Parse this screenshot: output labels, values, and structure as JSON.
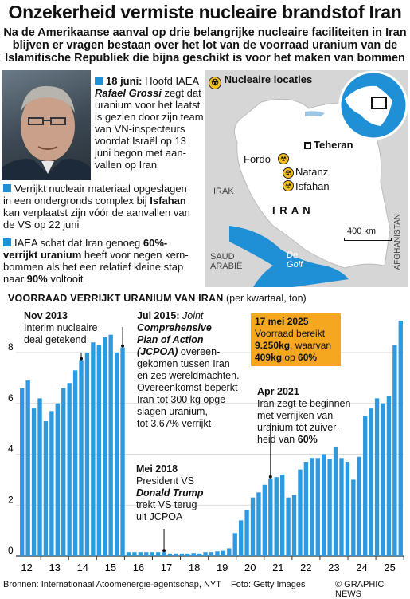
{
  "header": {
    "title": "Onzekerheid vermiste nucleaire brandstof Iran",
    "intro_1": "Na de Amerikaanse aanval op drie belangrijke nucleaire faciliteiten in Iran",
    "intro_2": "blijven er vragen bestaan over het lot van de voorraad uranium van de",
    "intro_3": "Islamitische Republiek die bijna geschikt is voor het maken van bommen"
  },
  "bullets": {
    "b1": {
      "date": "18 juni:",
      "line1_rest": "Hoofd IAEA",
      "name": "Rafael Grossi",
      "line2_rest": "zegt dat",
      "lines": [
        "uranium voor het laatst",
        "is gezien door zijn team",
        "van VN-inspecteurs",
        "voordat Israël op 13",
        "juni begon met aan-",
        "vallen op Iran"
      ]
    },
    "b2": {
      "line1": "Verrijkt nucleair materiaal opgeslagen",
      "line2": "in een ondergronds complex bij",
      "place": "Isfahan",
      "line3": "kan verplaatst zijn vóór de aanvallen van",
      "line4": "de VS op 22 juni"
    },
    "b3": {
      "line1_pre": "IAEA schat dat Iran genoeg",
      "line1_bold": "60%-",
      "line2_bold": "verrijkt uranium",
      "line2_rest": "heeft voor negen kern-",
      "line3": "bommen als het een relatief kleine stap",
      "line4_pre": "naar",
      "line4_bold": "90%",
      "line4_rest": "voltooit"
    }
  },
  "map": {
    "legend": "Nucleaire locaties",
    "labels": {
      "teheran": "Teheran",
      "fordo": "Fordo",
      "natanz": "Natanz",
      "isfahan": "Isfahan",
      "irak": "IRAK",
      "iran": "I R A N",
      "saudi_1": "SAUD",
      "saudi_2": "ARABIË",
      "afghanistan": "AFGHANISTAN",
      "gulf_1": "De",
      "gulf_2": "Golf"
    },
    "scale": "400 km"
  },
  "chart_title": {
    "bold": "Voorraad verrijkt uranium van Iran",
    "rest": "(per kwartaal, ton)"
  },
  "annotations": {
    "nov2013": {
      "date": "Nov 2013",
      "lines": [
        "Interim nucleaire",
        "deal getekend"
      ]
    },
    "jul2015": {
      "date": "Jul 2015:",
      "title_rest": "Joint",
      "italic_1": "Comprehensive",
      "italic_2": "Plan of Action",
      "italic_3": "(JCPOA)",
      "line3_rest": "overeen-",
      "lines": [
        "gekomen tussen Iran",
        "en zes wereldmachten.",
        "Overeenkomst beperkt",
        "Iran tot 300 kg opge-",
        "slagen uranium,",
        "tot 3.67% verrijkt"
      ]
    },
    "mei2018": {
      "date": "Mei 2018",
      "line1": "President VS",
      "name": "Donald Trump",
      "line3": "trekt VS terug",
      "line4": "uit JCPOA"
    },
    "apr2021": {
      "date": "Apr 2021",
      "lines": [
        "Iran zegt te beginnen",
        "met verrijken van",
        "uranium tot zuiver-"
      ],
      "last_pre": "heid van",
      "last_bold": "60%"
    },
    "mei2025": {
      "date": "17 mei 2025",
      "line1": "Voorraad bereikt",
      "line2_bold": "9.250kg",
      "line2_rest": ", waarvan",
      "line3_bold": "409kg",
      "line3_mid": " op ",
      "line3_bold2": "60%"
    }
  },
  "footer": {
    "sources": "Bronnen: Internationaal Atoomenergie-agentschap, NYT",
    "photo": "Foto: Getty Images",
    "credit": "© GRAPHIC NEWS"
  },
  "colors": {
    "bar": "#2b9ae0",
    "bullet": "#1f8fd6",
    "callout": "#f4a71f",
    "sea": "#1f8fd6",
    "land": "#ffffff"
  },
  "chart_data": {
    "type": "bar",
    "title": "Voorraad verrijkt uranium van Iran",
    "ylabel": "",
    "ylim": [
      0,
      9.5
    ],
    "yticks": [
      0,
      2,
      4,
      6,
      8
    ],
    "xticks": [
      "12",
      "13",
      "14",
      "15",
      "16",
      "17",
      "18",
      "19",
      "20",
      "21",
      "22",
      "23",
      "24",
      "25"
    ],
    "series": [
      {
        "name": "",
        "values": [
          6.6,
          6.9,
          5.8,
          6.2,
          5.3,
          5.7,
          6.0,
          6.6,
          6.8,
          7.3,
          7.7,
          8.0,
          8.4,
          8.3,
          8.6,
          8.7,
          8.0,
          8.2,
          0.15,
          0.15,
          0.15,
          0.15,
          0.15,
          0.15,
          0.15,
          0.1,
          0.1,
          0.1,
          0.1,
          0.12,
          0.1,
          0.15,
          0.15,
          0.18,
          0.2,
          0.3,
          0.9,
          1.4,
          1.8,
          2.3,
          2.5,
          2.8,
          3.05,
          3.1,
          3.2,
          2.3,
          2.4,
          3.4,
          3.7,
          3.85,
          3.85,
          4.0,
          3.8,
          4.3,
          3.85,
          3.7,
          3.0,
          3.9,
          5.5,
          5.8,
          6.2,
          6.0,
          6.3,
          8.3,
          9.25
        ]
      }
    ]
  }
}
